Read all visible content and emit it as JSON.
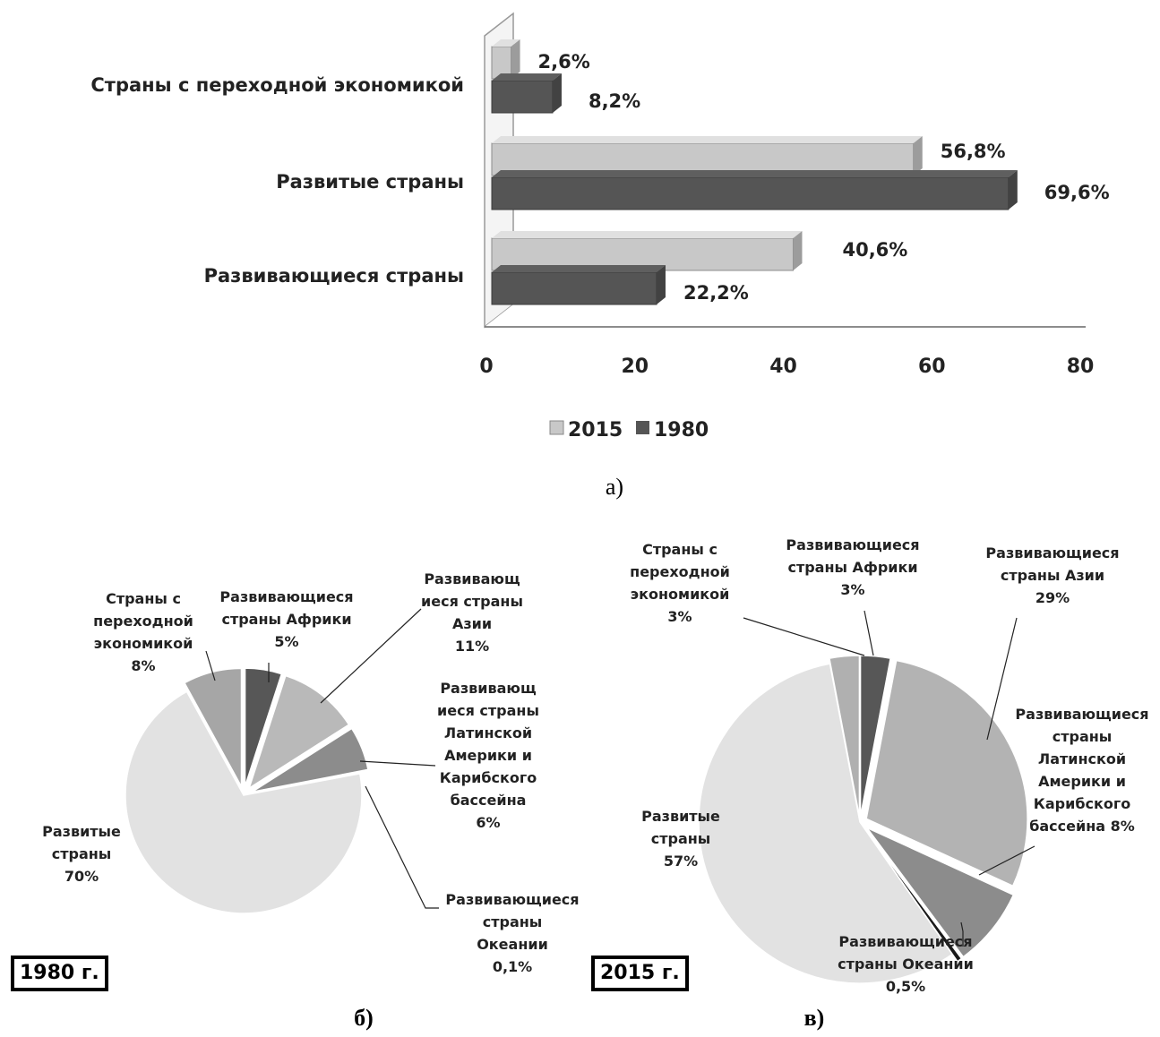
{
  "chart_data": [
    {
      "type": "bar",
      "orientation": "horizontal",
      "categories": [
        "Страны с переходной экономикой",
        "Развитые страны",
        "Развивающиеся страны"
      ],
      "series": [
        {
          "name": "2015",
          "values": [
            2.6,
            56.8,
            40.6
          ],
          "labels": [
            "2,6%",
            "56,8%",
            "40,6%"
          ],
          "color": "#c8c8c8"
        },
        {
          "name": "1980",
          "values": [
            8.2,
            69.6,
            22.2
          ],
          "labels": [
            "8,2%",
            "69,6%",
            "22,2%"
          ],
          "color": "#555555"
        }
      ],
      "xticks": [
        "0",
        "20",
        "40",
        "60",
        "80"
      ],
      "xlim": [
        0,
        80
      ],
      "legend_position": "bottom",
      "caption": "а)"
    },
    {
      "type": "pie",
      "year_label": "1980 г.",
      "caption": "б)",
      "slices": [
        {
          "label": "Развивающиеся страны Африки",
          "value": 5,
          "display": "5%",
          "color": "#575757"
        },
        {
          "label": "Развивающиеся страны Азии",
          "value": 11,
          "display": "11%",
          "color": "#b9b9b9"
        },
        {
          "label": "Развивающиеся страны Латинской Америки и Карибского бассейна",
          "value": 6,
          "display": "6%",
          "color": "#8c8c8c"
        },
        {
          "label": "Развивающиеся страны Океании",
          "value": 0.1,
          "display": "0,1%",
          "color": "#333333"
        },
        {
          "label": "Развитые страны",
          "value": 70,
          "display": "70%",
          "color": "#e2e2e2"
        },
        {
          "label": "Страны с переходной экономикой",
          "value": 8,
          "display": "8%",
          "color": "#a6a6a6"
        }
      ],
      "label_texts": {
        "africa": [
          "Развивающиеся",
          "страны Африки",
          "5%"
        ],
        "asia": [
          "Развивающ",
          "иеся страны",
          "Азии",
          "11%"
        ],
        "latam": [
          "Развивающ",
          "иеся страны",
          "Латинской",
          "Америки и",
          "Карибского",
          "бассейна",
          "6%"
        ],
        "oceania": [
          "Развивающиеся",
          "страны",
          "Океании",
          "0,1%"
        ],
        "developed": [
          "Развитые",
          "страны",
          "70%"
        ],
        "transition": [
          "Страны с",
          "переходной",
          "экономикой",
          "8%"
        ]
      }
    },
    {
      "type": "pie",
      "year_label": "2015 г.",
      "caption": "в)",
      "slices": [
        {
          "label": "Развивающиеся страны Африки",
          "value": 3,
          "display": "3%",
          "color": "#575757"
        },
        {
          "label": "Развивающиеся страны Азии",
          "value": 29,
          "display": "29%",
          "color": "#b3b3b3"
        },
        {
          "label": "Развивающиеся страны Латинской Америки и Карибского бассейна",
          "value": 8,
          "display": "8%",
          "color": "#8c8c8c"
        },
        {
          "label": "Развивающиеся страны Океании",
          "value": 0.5,
          "display": "0,5%",
          "color": "#1a1a1a"
        },
        {
          "label": "Развитые страны",
          "value": 57,
          "display": "57%",
          "color": "#e2e2e2"
        },
        {
          "label": "Страны с переходной экономикой",
          "value": 3,
          "display": "3%",
          "color": "#b0b0b0"
        }
      ],
      "label_texts": {
        "africa": [
          "Развивающиеся",
          "страны Африки",
          "3%"
        ],
        "asia": [
          "Развивающиеся",
          "страны Азии",
          "29%"
        ],
        "latam": [
          "Развивающиеся",
          "страны",
          "Латинской",
          "Америки и",
          "Карибского",
          "бассейна 8%"
        ],
        "oceania": [
          "Развивающиеся",
          "страны Океании",
          "0,5%"
        ],
        "developed": [
          "Развитые",
          "страны",
          "57%"
        ],
        "transition": [
          "Страны с",
          "переходной",
          "экономикой",
          "3%"
        ]
      }
    }
  ]
}
